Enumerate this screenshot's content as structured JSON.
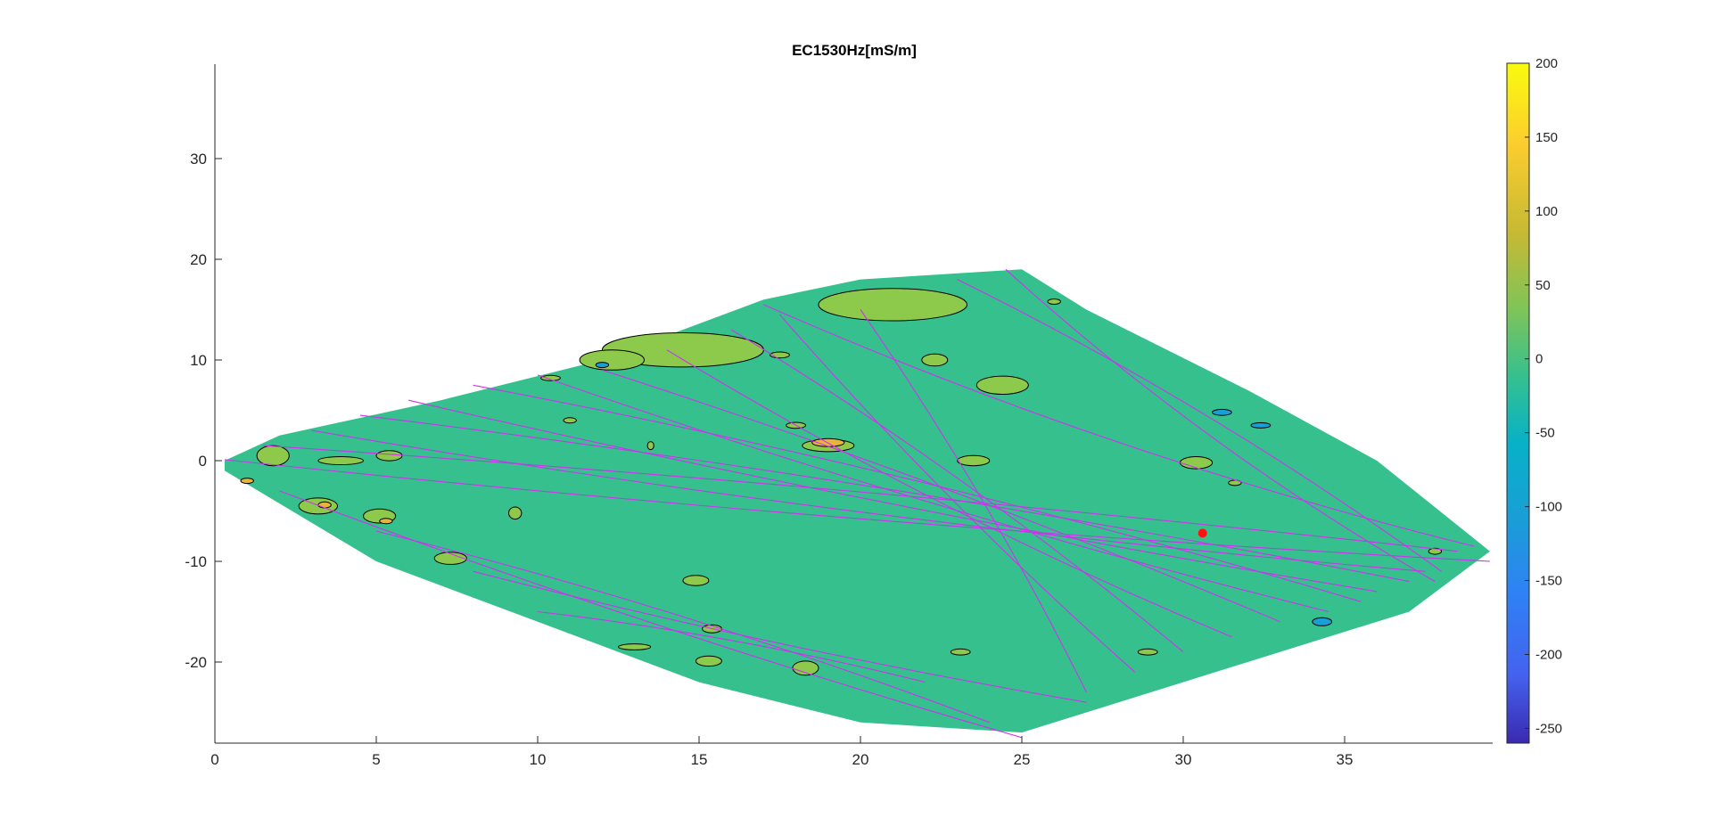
{
  "chart_data": {
    "type": "contour",
    "title": "EC1530Hz[mS/m]",
    "xlabel": "",
    "ylabel": "",
    "xlim": [
      0,
      39.5
    ],
    "ylim": [
      -28,
      39.5
    ],
    "x_ticks": [
      0,
      5,
      10,
      15,
      20,
      25,
      30,
      35
    ],
    "y_ticks": [
      30,
      20,
      10,
      0,
      -10,
      -20
    ],
    "colorbar": {
      "range": [
        -260,
        200
      ],
      "ticks": [
        200,
        150,
        100,
        50,
        0,
        -50,
        -100,
        -150,
        -200,
        -250
      ],
      "colormap": "parula"
    },
    "colors": {
      "base_fill": "#36c08e",
      "high_fill": "#8dc94a",
      "peak_fill": "#e6b53a",
      "low_fill": "#1a9ed6",
      "track": "#cc33ee",
      "marker": "#ff1111",
      "contour_line": "#000000"
    },
    "survey_outline": [
      [
        0.3,
        0
      ],
      [
        2,
        2.5
      ],
      [
        7,
        6
      ],
      [
        12,
        10
      ],
      [
        17,
        16
      ],
      [
        20,
        18
      ],
      [
        25,
        19
      ],
      [
        27,
        15
      ],
      [
        32,
        7
      ],
      [
        36,
        0
      ],
      [
        39.5,
        -9
      ],
      [
        37,
        -15
      ],
      [
        30,
        -22
      ],
      [
        25,
        -27
      ],
      [
        20,
        -26
      ],
      [
        15,
        -22
      ],
      [
        10,
        -16
      ],
      [
        5,
        -10
      ],
      [
        0.3,
        -1
      ]
    ],
    "marker_point": {
      "x": 30.6,
      "y": -7.2
    },
    "high_patches": [
      {
        "x": 21,
        "y": 15.5,
        "rx": 2.3,
        "ry": 1.6
      },
      {
        "x": 14.5,
        "y": 11,
        "rx": 2.5,
        "ry": 1.7
      },
      {
        "x": 12.3,
        "y": 10,
        "rx": 1.0,
        "ry": 1.0
      },
      {
        "x": 24.4,
        "y": 7.5,
        "rx": 0.8,
        "ry": 0.9
      },
      {
        "x": 22.3,
        "y": 10,
        "rx": 0.4,
        "ry": 0.6
      },
      {
        "x": 30.4,
        "y": -0.2,
        "rx": 0.5,
        "ry": 0.6
      },
      {
        "x": 23.5,
        "y": 0,
        "rx": 0.5,
        "ry": 0.5
      },
      {
        "x": 1.8,
        "y": 0.5,
        "rx": 0.5,
        "ry": 1.0
      },
      {
        "x": 3.9,
        "y": 0,
        "rx": 0.7,
        "ry": 0.4
      },
      {
        "x": 5.4,
        "y": 0.5,
        "rx": 0.4,
        "ry": 0.5
      },
      {
        "x": 3.2,
        "y": -4.5,
        "rx": 0.6,
        "ry": 0.8
      },
      {
        "x": 5.1,
        "y": -5.5,
        "rx": 0.5,
        "ry": 0.7
      },
      {
        "x": 7.3,
        "y": -9.7,
        "rx": 0.5,
        "ry": 0.6
      },
      {
        "x": 9.3,
        "y": -5.2,
        "rx": 0.2,
        "ry": 0.6
      },
      {
        "x": 14.9,
        "y": -11.9,
        "rx": 0.4,
        "ry": 0.5
      },
      {
        "x": 15.4,
        "y": -16.7,
        "rx": 0.3,
        "ry": 0.4
      },
      {
        "x": 15.3,
        "y": -19.9,
        "rx": 0.4,
        "ry": 0.5
      },
      {
        "x": 18.3,
        "y": -20.6,
        "rx": 0.4,
        "ry": 0.7
      },
      {
        "x": 13,
        "y": -18.5,
        "rx": 0.5,
        "ry": 0.3
      },
      {
        "x": 19,
        "y": 1.5,
        "rx": 0.8,
        "ry": 0.6
      },
      {
        "x": 17.5,
        "y": 10.5,
        "rx": 0.3,
        "ry": 0.3
      },
      {
        "x": 18,
        "y": 3.5,
        "rx": 0.3,
        "ry": 0.3
      },
      {
        "x": 23.1,
        "y": -19,
        "rx": 0.3,
        "ry": 0.3
      },
      {
        "x": 31.6,
        "y": -2.2,
        "rx": 0.2,
        "ry": 0.2
      },
      {
        "x": 37.8,
        "y": -9,
        "rx": 0.2,
        "ry": 0.3
      },
      {
        "x": 26,
        "y": 15.8,
        "rx": 0.2,
        "ry": 0.2
      },
      {
        "x": 10.4,
        "y": 8.2,
        "rx": 0.3,
        "ry": 0.2
      },
      {
        "x": 11,
        "y": 4,
        "rx": 0.2,
        "ry": 0.2
      },
      {
        "x": 13.5,
        "y": 1.5,
        "rx": 0.1,
        "ry": 0.4
      },
      {
        "x": 28.9,
        "y": -19,
        "rx": 0.3,
        "ry": 0.3
      }
    ],
    "peak_patches": [
      {
        "x": 19,
        "y": 1.8,
        "rx": 0.5,
        "ry": 0.4
      },
      {
        "x": 3.4,
        "y": -4.4,
        "rx": 0.2,
        "ry": 0.3
      },
      {
        "x": 1.0,
        "y": -2.0,
        "rx": 0.2,
        "ry": 0.2
      },
      {
        "x": 5.3,
        "y": -6.0,
        "rx": 0.2,
        "ry": 0.2
      }
    ],
    "low_patches": [
      {
        "x": 34.3,
        "y": -16,
        "rx": 0.3,
        "ry": 0.4
      },
      {
        "x": 31.2,
        "y": 4.8,
        "rx": 0.3,
        "ry": 0.3
      },
      {
        "x": 32.4,
        "y": 3.5,
        "rx": 0.3,
        "ry": 0.2
      },
      {
        "x": 12,
        "y": 9.5,
        "rx": 0.2,
        "ry": 0.2
      }
    ],
    "track_passes": [
      {
        "start": [
          0.3,
          0.1
        ],
        "end": [
          39.5,
          -10
        ],
        "bow": 1.0
      },
      {
        "start": [
          1.5,
          1.5
        ],
        "end": [
          38.5,
          -9
        ],
        "bow": -0.8
      },
      {
        "start": [
          3,
          3
        ],
        "end": [
          37.5,
          -11
        ],
        "bow": 1.5
      },
      {
        "start": [
          4.5,
          4.5
        ],
        "end": [
          37,
          -12
        ],
        "bow": -1.2
      },
      {
        "start": [
          6,
          6
        ],
        "end": [
          36,
          -13
        ],
        "bow": 1.0
      },
      {
        "start": [
          8,
          7.5
        ],
        "end": [
          35.5,
          -14
        ],
        "bow": -1.5
      },
      {
        "start": [
          10,
          8.5
        ],
        "end": [
          34.5,
          -15
        ],
        "bow": 1.2
      },
      {
        "start": [
          12,
          9
        ],
        "end": [
          33,
          -16
        ],
        "bow": -1.0
      },
      {
        "start": [
          14,
          11
        ],
        "end": [
          31.5,
          -17.5
        ],
        "bow": 1.5
      },
      {
        "start": [
          16,
          13
        ],
        "end": [
          30,
          -19
        ],
        "bow": -1.3
      },
      {
        "start": [
          17.5,
          14.5
        ],
        "end": [
          28.5,
          -21
        ],
        "bow": 1.0
      },
      {
        "start": [
          20,
          15
        ],
        "end": [
          27,
          -23
        ],
        "bow": -1.0
      },
      {
        "start": [
          24.5,
          19
        ],
        "end": [
          37.8,
          -12
        ],
        "bow": 1.8
      },
      {
        "start": [
          23,
          18
        ],
        "end": [
          38,
          -11
        ],
        "bow": -1.5
      },
      {
        "start": [
          2,
          -3
        ],
        "end": [
          25,
          -27.5
        ],
        "bow": 1.0
      },
      {
        "start": [
          5,
          -7
        ],
        "end": [
          24,
          -26
        ],
        "bow": -1.2
      },
      {
        "start": [
          8,
          -11
        ],
        "end": [
          27,
          -24
        ],
        "bow": 0.8
      },
      {
        "start": [
          10,
          -15
        ],
        "end": [
          22,
          -22
        ],
        "bow": -0.8
      },
      {
        "start": [
          17,
          15.5
        ],
        "end": [
          39,
          -8.5
        ],
        "bow": 2.0
      }
    ]
  }
}
